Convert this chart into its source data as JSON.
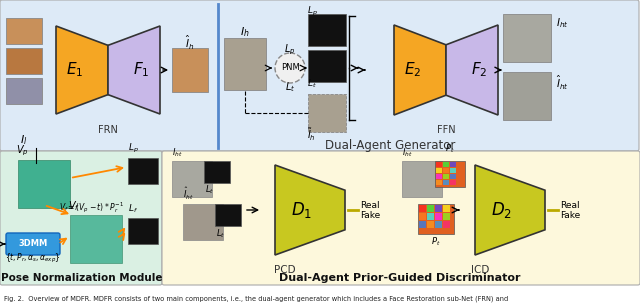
{
  "fig_caption": "Fig. 2.  Overview of MDFR. MDFR consists of two main components, i.e., the dual-agent generator which includes a Face Restoration sub-Net (FRN) and",
  "top_section_bg": "#ddeaf7",
  "bottom_left_bg": "#daf0e3",
  "bottom_right_bg": "#fdf8dc",
  "top_label": "Dual-Agent Generator",
  "bottom_left_label": "Pose Normalization Module",
  "bottom_right_label": "Dual-Agent Prior-Guided Discriminator",
  "frn_label": "FRN",
  "ffn_label": "FFN",
  "pcd_label": "PCD",
  "icd_label": "ICD",
  "orange_color": "#F5A623",
  "purple_color": "#C8B8E8",
  "yellow_green_color": "#C8C820",
  "teal_color": "#40B090",
  "blue_3dmm": "#3399DD",
  "dark_edge": "#333333",
  "arrow_color": "#FF8800"
}
